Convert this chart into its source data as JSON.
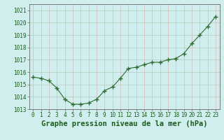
{
  "x": [
    0,
    1,
    2,
    3,
    4,
    5,
    6,
    7,
    8,
    9,
    10,
    11,
    12,
    13,
    14,
    15,
    16,
    17,
    18,
    19,
    20,
    21,
    22,
    23
  ],
  "y": [
    1015.6,
    1015.5,
    1015.3,
    1014.7,
    1013.8,
    1013.4,
    1013.4,
    1013.5,
    1013.8,
    1014.5,
    1014.8,
    1015.5,
    1016.3,
    1016.4,
    1016.6,
    1016.8,
    1016.8,
    1017.0,
    1017.1,
    1017.5,
    1018.3,
    1019.0,
    1019.7,
    1020.5
  ],
  "line_color": "#2d6a2d",
  "marker": "+",
  "marker_size": 5,
  "bg_color": "#d0eeee",
  "title": "Graphe pression niveau de la mer (hPa)",
  "ylim": [
    1013.0,
    1021.5
  ],
  "xlim": [
    -0.5,
    23.5
  ],
  "title_fontsize": 7.5,
  "tick_fontsize": 5.5,
  "title_color": "#1a5c1a",
  "axis_color": "#555555",
  "h_grid_color": "#b8c8b8",
  "v_grid_color": "#d8b8b8"
}
